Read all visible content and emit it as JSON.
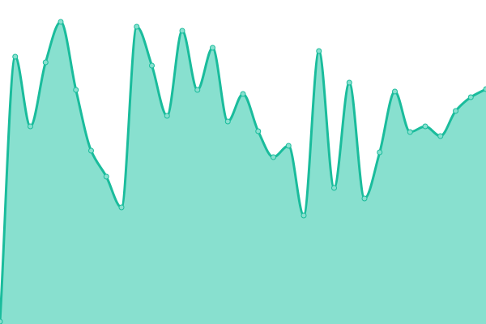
{
  "chart_data": {
    "type": "area",
    "title": "",
    "xlabel": "",
    "ylabel": "",
    "x": [
      0,
      1,
      2,
      3,
      4,
      5,
      6,
      7,
      8,
      9,
      10,
      11,
      12,
      13,
      14,
      15,
      16,
      17,
      18,
      19,
      20,
      21,
      22,
      23,
      24,
      25,
      26,
      27,
      28,
      29,
      30,
      31,
      32
    ],
    "values": [
      3,
      330,
      244,
      323,
      373,
      289,
      214,
      182,
      144,
      367,
      319,
      257,
      362,
      289,
      341,
      250,
      284,
      238,
      206,
      220,
      134,
      337,
      168,
      298,
      155,
      212,
      287,
      237,
      244,
      232,
      263,
      280,
      290
    ],
    "ylim": [
      0,
      400
    ],
    "grid": false,
    "axes_visible": false,
    "curve": "smooth",
    "markers": true,
    "colors": {
      "line": "#1abc9c",
      "fill": "#88e0cf",
      "marker_fill": "#88e0cf"
    }
  }
}
